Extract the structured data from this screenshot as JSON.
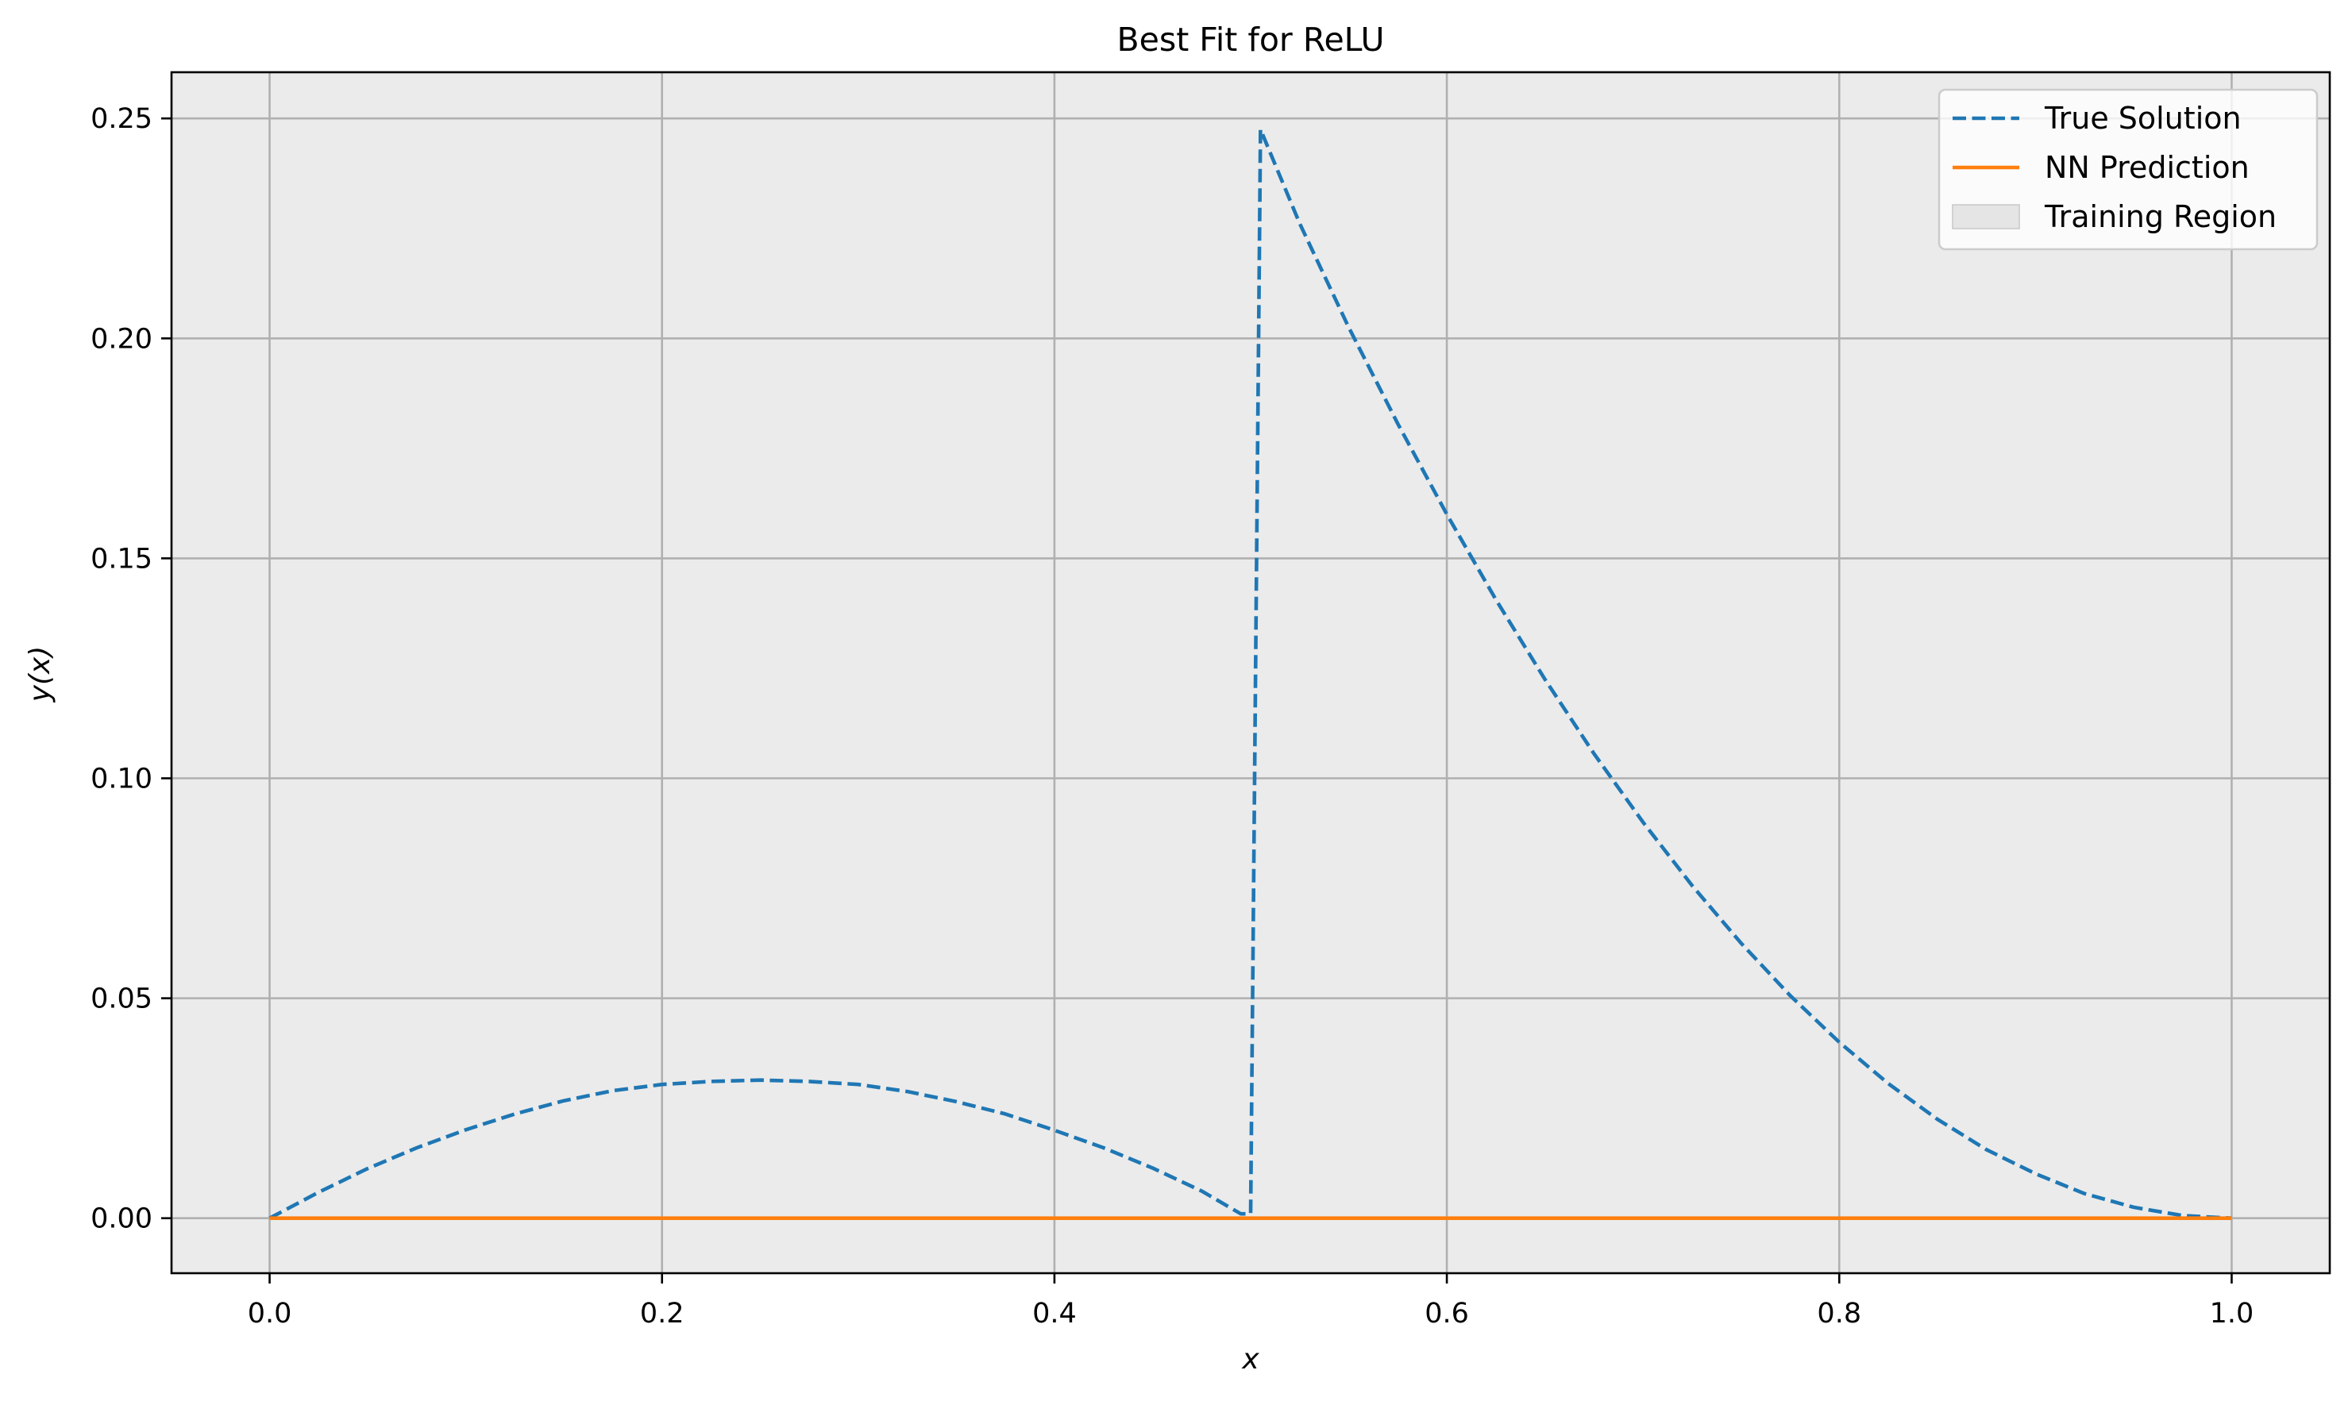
{
  "chart_data": {
    "type": "line",
    "title": "Best Fit for ReLU",
    "xlabel": "x",
    "ylabel": "y(x)",
    "xlim": [
      -0.05,
      1.05
    ],
    "ylim": [
      -0.0125,
      0.2605
    ],
    "x_ticks": [
      0.0,
      0.2,
      0.4,
      0.6,
      0.8,
      1.0
    ],
    "x_tick_labels": [
      "0.0",
      "0.2",
      "0.4",
      "0.6",
      "0.8",
      "1.0"
    ],
    "y_ticks": [
      0.0,
      0.05,
      0.1,
      0.15,
      0.2,
      0.25
    ],
    "y_tick_labels": [
      "0.00",
      "0.05",
      "0.10",
      "0.15",
      "0.20",
      "0.25"
    ],
    "grid": true,
    "legend_position": "top-right",
    "shaded_region": {
      "name": "Training Region",
      "x_range": [
        -0.05,
        1.05
      ],
      "color": "#d3d3d3",
      "opacity": 0.45
    },
    "series": [
      {
        "name": "True Solution",
        "style": "dashed",
        "color": "#1f77b4",
        "x": [
          0.0,
          0.025,
          0.05,
          0.075,
          0.1,
          0.125,
          0.15,
          0.175,
          0.2,
          0.225,
          0.25,
          0.275,
          0.3,
          0.325,
          0.35,
          0.375,
          0.4,
          0.425,
          0.45,
          0.475,
          0.495,
          0.5,
          0.505,
          0.525,
          0.55,
          0.575,
          0.6,
          0.625,
          0.65,
          0.675,
          0.7,
          0.725,
          0.75,
          0.775,
          0.8,
          0.825,
          0.85,
          0.875,
          0.9,
          0.925,
          0.95,
          0.975,
          1.0
        ],
        "y": [
          0.0,
          0.0059,
          0.0113,
          0.016,
          0.0201,
          0.0237,
          0.0267,
          0.029,
          0.0304,
          0.0311,
          0.0314,
          0.0311,
          0.0304,
          0.0288,
          0.0265,
          0.0237,
          0.02,
          0.016,
          0.0114,
          0.0062,
          0.001,
          0.001,
          0.2475,
          0.2261,
          0.2025,
          0.1806,
          0.16,
          0.1406,
          0.1225,
          0.1056,
          0.09,
          0.0756,
          0.0625,
          0.0506,
          0.04,
          0.0306,
          0.0225,
          0.0156,
          0.0101,
          0.0056,
          0.0025,
          0.0006,
          0.0
        ]
      },
      {
        "name": "NN Prediction",
        "style": "solid",
        "color": "#ff7f0e",
        "x": [
          0.0,
          1.0
        ],
        "y": [
          0.0,
          0.0
        ]
      }
    ]
  }
}
